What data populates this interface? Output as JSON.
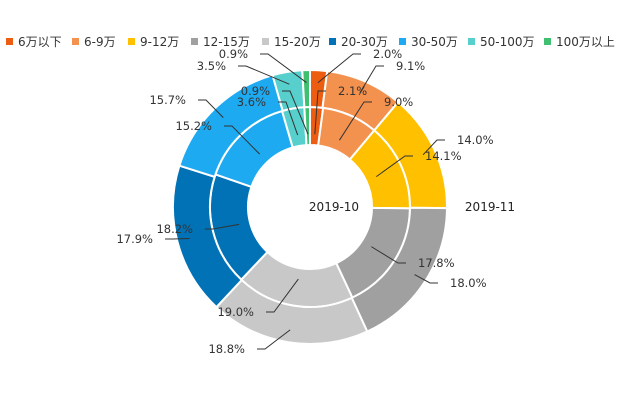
{
  "chart_data": {
    "type": "donut",
    "legend_position": "top",
    "categories": [
      "6万以下",
      "6-9万",
      "9-12万",
      "12-15万",
      "15-20万",
      "20-30万",
      "30-50万",
      "50-100万",
      "100万以上"
    ],
    "colors": [
      "#ec5d11",
      "#f3914e",
      "#ffc000",
      "#a0a0a0",
      "#c8c8c8",
      "#0172b5",
      "#1eaaf1",
      "#57cfcc",
      "#3fbf6f"
    ],
    "series": [
      {
        "name": "2019-10",
        "ring": "inner",
        "values": [
          2.1,
          9.0,
          14.1,
          17.8,
          19.0,
          18.2,
          15.2,
          3.6,
          0.9
        ],
        "labels": [
          "2.1%",
          "9.0%",
          "14.1%",
          "17.8%",
          "19.0%",
          "18.2%",
          "15.2%",
          "3.6%",
          "0.9%"
        ]
      },
      {
        "name": "2019-11",
        "ring": "outer",
        "values": [
          2.0,
          9.1,
          14.0,
          18.0,
          18.8,
          17.9,
          15.7,
          3.5,
          0.9
        ],
        "labels": [
          "2.0%",
          "9.1%",
          "14.0%",
          "18.0%",
          "18.8%",
          "17.9%",
          "15.7%",
          "3.5%",
          "0.9%"
        ]
      }
    ]
  }
}
